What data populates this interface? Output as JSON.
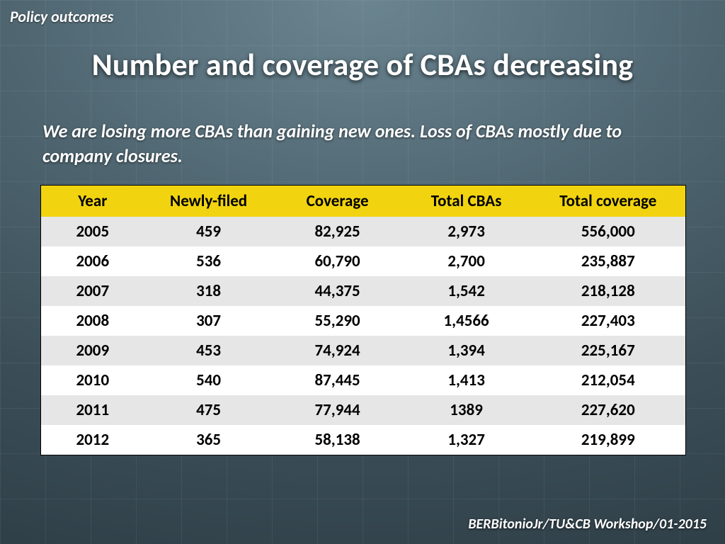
{
  "section_label": "Policy outcomes",
  "title": "Number and coverage of CBAs decreasing",
  "subtitle": "We are losing more CBAs than gaining new ones. Loss of CBAs mostly due to company closures.",
  "footer": "BERBitonioJr/TU&CB Workshop/01-2015",
  "table": {
    "type": "table",
    "header_bg": "#f1d40f",
    "header_fg": "#000000",
    "row_odd_bg": "#e6e6e6",
    "row_even_bg": "#ffffff",
    "cell_fg": "#000000",
    "border_color": "#000000",
    "font_size_pt": 17,
    "columns": [
      "Year",
      "Newly-filed",
      "Coverage",
      "Total CBAs",
      "Total coverage"
    ],
    "col_widths_pct": [
      16,
      20,
      20,
      20,
      24
    ],
    "rows": [
      [
        "2005",
        "459",
        "82,925",
        "2,973",
        "556,000"
      ],
      [
        "2006",
        "536",
        "60,790",
        "2,700",
        "235,887"
      ],
      [
        "2007",
        "318",
        "44,375",
        "1,542",
        "218,128"
      ],
      [
        "2008",
        "307",
        "55,290",
        "1,4566",
        "227,403"
      ],
      [
        "2009",
        "453",
        "74,924",
        "1,394",
        "225,167"
      ],
      [
        "2010",
        "540",
        "87,445",
        "1,413",
        "212,054"
      ],
      [
        "2011",
        "475",
        "77,944",
        "1389",
        "227,620"
      ],
      [
        "2012",
        "365",
        "58,138",
        "1,327",
        "219,899"
      ]
    ]
  },
  "slide_bg_gradient": [
    "#6a8490",
    "#4f6671",
    "#3b4e58",
    "#2b3a42"
  ],
  "grid_line_color": "rgba(255,255,255,0.06)",
  "title_color": "#ffffff",
  "text_color": "#ffffff"
}
